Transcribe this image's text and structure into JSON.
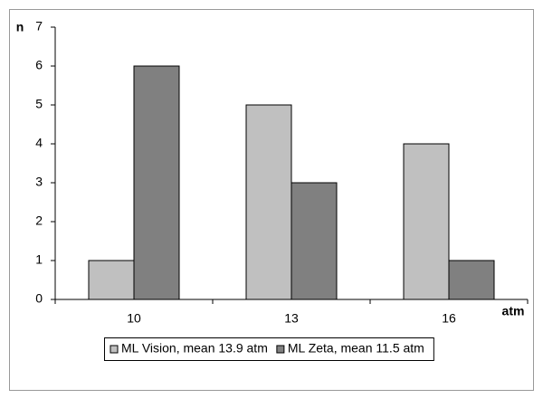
{
  "chart_data": {
    "type": "bar",
    "y_label": "n",
    "x_label": "atm",
    "categories": [
      "10",
      "13",
      "16"
    ],
    "series": [
      {
        "name": "ML Vision, mean 13.9 atm",
        "color": "#c0c0c0",
        "values": [
          1,
          5,
          4
        ]
      },
      {
        "name": "ML Zeta, mean 11.5 atm",
        "color": "#808080",
        "values": [
          6,
          3,
          1
        ]
      }
    ],
    "ylim": [
      0,
      7
    ],
    "yticks": [
      0,
      1,
      2,
      3,
      4,
      5,
      6,
      7
    ],
    "grid": false,
    "legend": "bottom"
  }
}
